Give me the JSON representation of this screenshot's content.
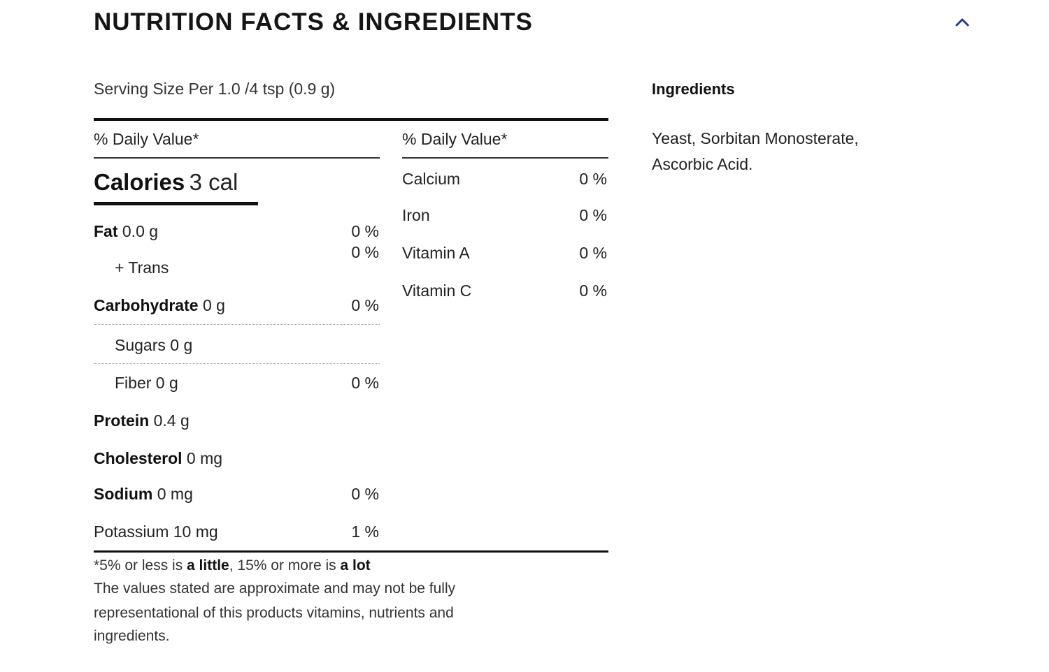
{
  "header": {
    "title": "NUTRITION FACTS & INGREDIENTS",
    "toggle_icon": "chevron-up-icon",
    "accent_color": "#2b3a8c"
  },
  "serving_size": "Serving Size Per 1.0 /4 tsp (0.9 g)",
  "left_column": {
    "daily_value_header": "% Daily Value*",
    "calories": {
      "label": "Calories",
      "value": "3 cal"
    },
    "nutrients": [
      {
        "label": "Fat",
        "amount": "0.0 g",
        "percent": "0 %"
      },
      {
        "label": "+ Trans",
        "amount": "",
        "percent": "0 %"
      },
      {
        "label": "Carbohydrate",
        "amount": "0 g",
        "percent": "0 %"
      },
      {
        "label": "Sugars",
        "amount": "0 g",
        "percent": ""
      },
      {
        "label": "Fiber",
        "amount": "0 g",
        "percent": "0 %"
      },
      {
        "label": "Protein",
        "amount": "0.4 g",
        "percent": ""
      },
      {
        "label": "Cholesterol",
        "amount": "0 mg",
        "percent": ""
      },
      {
        "label": "Sodium",
        "amount": "0 mg",
        "percent": "0 %"
      },
      {
        "label": "Potassium",
        "amount": "10 mg",
        "percent": "1 %"
      }
    ]
  },
  "right_column": {
    "daily_value_header": "% Daily Value*",
    "vitamins": [
      {
        "label": "Calcium",
        "percent": "0 %"
      },
      {
        "label": "Iron",
        "percent": "0 %"
      },
      {
        "label": "Vitamin A",
        "percent": "0 %"
      },
      {
        "label": "Vitamin C",
        "percent": "0 %"
      }
    ]
  },
  "footnote": {
    "prefix": "*5% or less is ",
    "little": "a little",
    "middle": ", 15% or more is ",
    "lot": "a lot",
    "disclaimer_line1": "The values stated are approximate and may not be fully",
    "disclaimer_line2": "representational of this products vitamins, nutrients and",
    "disclaimer_line3": "ingredients."
  },
  "ingredients": {
    "title": "Ingredients",
    "line1": "Yeast, Sorbitan Monosterate,",
    "line2": "Ascorbic Acid."
  }
}
